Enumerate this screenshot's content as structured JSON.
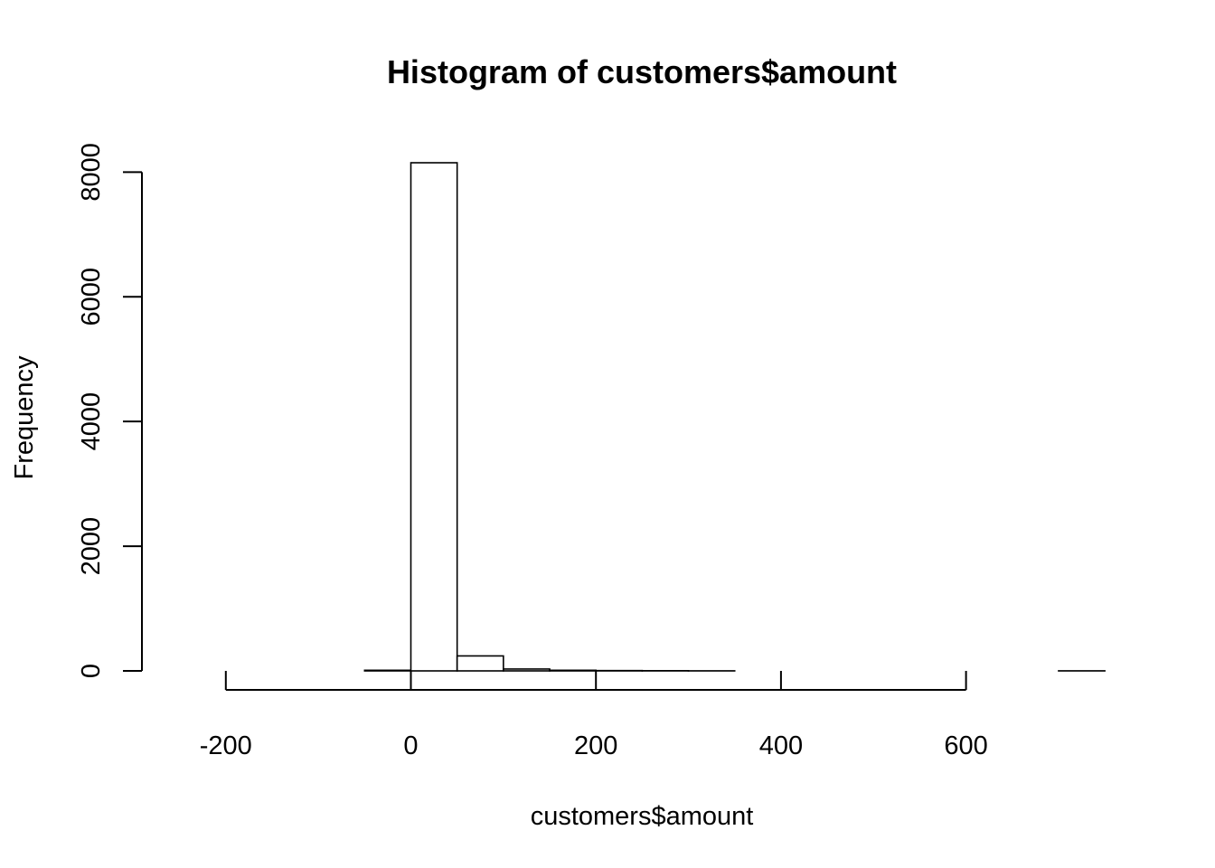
{
  "chart_data": {
    "type": "bar",
    "title": "Histogram of customers$amount",
    "xlabel": "customers$amount",
    "ylabel": "Frequency",
    "bin_edges": [
      -250,
      -200,
      -150,
      -100,
      -50,
      0,
      50,
      100,
      150,
      200,
      250,
      300,
      350,
      400,
      450,
      500,
      550,
      600,
      650,
      700,
      750
    ],
    "values": [
      0,
      0,
      0,
      0,
      10,
      8150,
      240,
      30,
      10,
      5,
      3,
      1,
      0,
      0,
      0,
      0,
      0,
      0,
      0,
      1
    ],
    "xlim": [
      -250,
      750
    ],
    "ylim": [
      0,
      8150
    ],
    "x_ticks": [
      -200,
      0,
      200,
      400,
      600
    ],
    "y_ticks": [
      0,
      2000,
      4000,
      6000,
      8000
    ],
    "x_tick_labels": [
      "-200",
      "0",
      "200",
      "400",
      "600"
    ],
    "y_tick_labels": [
      "0",
      "2000",
      "4000",
      "6000",
      "8000"
    ],
    "grid": false,
    "bar_fill": "#ffffff",
    "bar_stroke": "#000000"
  }
}
